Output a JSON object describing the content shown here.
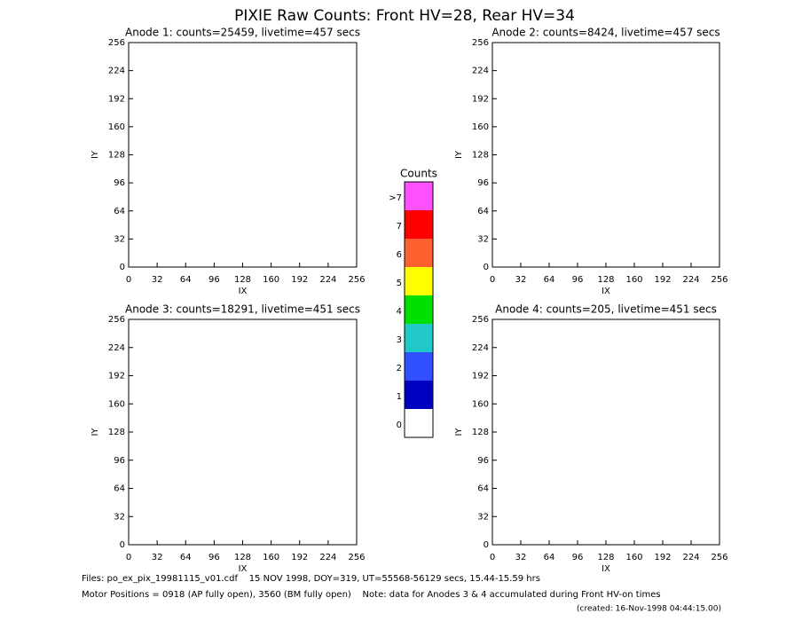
{
  "header": {
    "title": "PIXIE Raw Counts:  Front HV=28, Rear HV=34"
  },
  "chart_data": [
    {
      "type": "heatmap",
      "title": "Anode 1: counts=25459, livetime=457 secs",
      "x_label": "IX",
      "y_label": "IY",
      "xlim": [
        0,
        256
      ],
      "ylim": [
        0,
        256
      ],
      "xticks": [
        0,
        32,
        64,
        96,
        128,
        160,
        192,
        224,
        256
      ],
      "yticks": [
        0,
        32,
        64,
        96,
        128,
        160,
        192,
        224,
        256
      ]
    },
    {
      "type": "heatmap",
      "title": "Anode 2: counts=8424, livetime=457 secs",
      "x_label": "IX",
      "y_label": "IY",
      "xlim": [
        0,
        256
      ],
      "ylim": [
        0,
        256
      ],
      "xticks": [
        0,
        32,
        64,
        96,
        128,
        160,
        192,
        224,
        256
      ],
      "yticks": [
        0,
        32,
        64,
        96,
        128,
        160,
        192,
        224,
        256
      ]
    },
    {
      "type": "heatmap",
      "title": "Anode 3: counts=18291, livetime=451 secs",
      "x_label": "IX",
      "y_label": "IY",
      "xlim": [
        0,
        256
      ],
      "ylim": [
        0,
        256
      ],
      "xticks": [
        0,
        32,
        64,
        96,
        128,
        160,
        192,
        224,
        256
      ],
      "yticks": [
        0,
        32,
        64,
        96,
        128,
        160,
        192,
        224,
        256
      ]
    },
    {
      "type": "heatmap",
      "title": "Anode 4: counts=205, livetime=451 secs",
      "x_label": "IX",
      "y_label": "IY",
      "xlim": [
        0,
        256
      ],
      "ylim": [
        0,
        256
      ],
      "xticks": [
        0,
        32,
        64,
        96,
        128,
        160,
        192,
        224,
        256
      ],
      "yticks": [
        0,
        32,
        64,
        96,
        128,
        160,
        192,
        224,
        256
      ]
    },
    {
      "type": "colorbar",
      "title": "Counts",
      "categories": [
        "0",
        "1",
        "2",
        "3",
        "4",
        "5",
        "6",
        "7",
        ">7"
      ],
      "colors": [
        "#ffffff",
        "#0000c0",
        "#3050ff",
        "#20c8c8",
        "#00e000",
        "#ffff00",
        "#ff6030",
        "#ff0000",
        "#ff50ff"
      ]
    }
  ],
  "footer": {
    "files": "Files: po_ex_pix_19981115_v01.cdf    15 NOV 1998, DOY=319, UT=55568-56129 secs, 15.44-15.59 hrs",
    "motor": "Motor Positions = 0918 (AP fully open), 3560 (BM fully open)    Note: data for Anodes 3 & 4 accumulated during Front HV-on times",
    "created": "(created: 16-Nov-1998 04:44:15.00)"
  }
}
